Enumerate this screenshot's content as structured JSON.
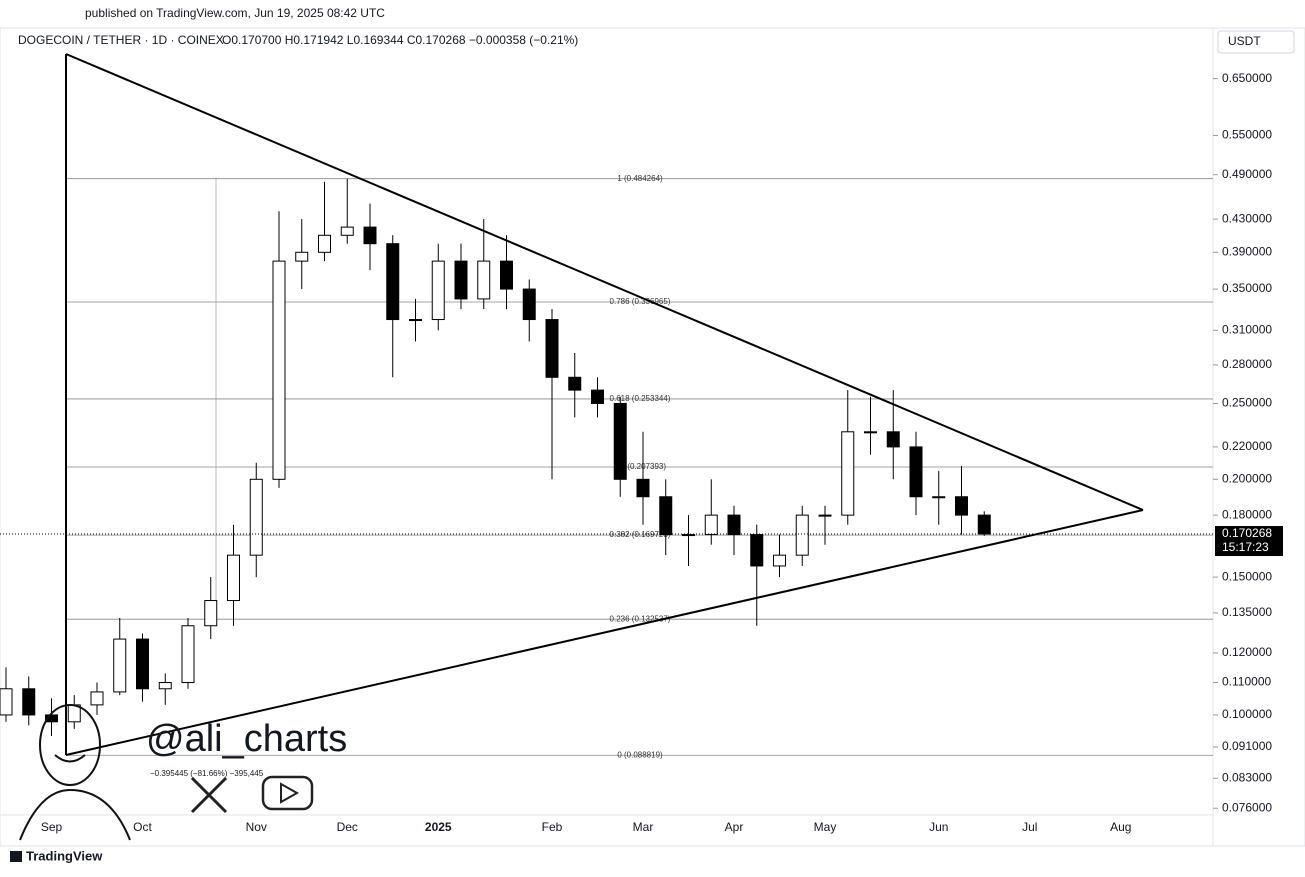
{
  "header": {
    "published": "published on TradingView.com, Jun 19, 2025 08:42 UTC",
    "symbol": "DOGECOIN / TETHER · 1D · COINEX",
    "ohlc": "O0.170700  H0.171942  L0.169344  C0.170268  −0.000358 (−0.21%)",
    "currency": "USDT"
  },
  "chart_data": {
    "type": "candlestick",
    "log_scale": true,
    "up_color": "#ffffff",
    "down_color": "#000000",
    "edge_color": "#000000",
    "categories": [
      null,
      null,
      "Sep",
      null,
      null,
      null,
      "Oct",
      null,
      null,
      null,
      null,
      "Nov",
      null,
      null,
      null,
      "Dec",
      null,
      null,
      null,
      "2025",
      null,
      null,
      null,
      null,
      "Feb",
      null,
      null,
      null,
      "Mar",
      null,
      null,
      null,
      "Apr",
      null,
      null,
      null,
      "May",
      null,
      null,
      null,
      null,
      "Jun",
      null,
      null,
      null,
      "Jul",
      null,
      null,
      null,
      "Aug",
      null
    ],
    "open": [
      0.1,
      0.108,
      0.1,
      0.098,
      0.103,
      0.107,
      0.125,
      0.108,
      0.11,
      0.13,
      0.14,
      0.16,
      0.2,
      0.38,
      0.39,
      0.41,
      0.42,
      0.4,
      0.32,
      0.32,
      0.38,
      0.34,
      0.38,
      0.35,
      0.32,
      0.27,
      0.26,
      0.25,
      0.2,
      0.19,
      0.17,
      0.17,
      0.18,
      0.17,
      0.155,
      0.16,
      0.18,
      0.18,
      0.23,
      0.23,
      0.22,
      0.19,
      0.19,
      0.18,
      null,
      null,
      null,
      null,
      null,
      null,
      null
    ],
    "high": [
      0.115,
      0.112,
      0.105,
      0.106,
      0.11,
      0.133,
      0.127,
      0.113,
      0.133,
      0.15,
      0.175,
      0.21,
      0.44,
      0.43,
      0.48,
      0.484,
      0.45,
      0.41,
      0.34,
      0.4,
      0.4,
      0.43,
      0.41,
      0.36,
      0.33,
      0.29,
      0.27,
      0.255,
      0.23,
      0.2,
      0.18,
      0.2,
      0.185,
      0.175,
      0.17,
      0.185,
      0.185,
      0.26,
      0.255,
      0.26,
      0.23,
      0.205,
      0.208,
      0.182,
      null,
      null,
      null,
      null,
      null,
      null,
      null
    ],
    "low": [
      0.098,
      0.097,
      0.094,
      0.096,
      0.1,
      0.106,
      0.104,
      0.103,
      0.108,
      0.125,
      0.13,
      0.15,
      0.195,
      0.35,
      0.38,
      0.4,
      0.37,
      0.27,
      0.3,
      0.31,
      0.33,
      0.33,
      0.33,
      0.3,
      0.2,
      0.24,
      0.24,
      0.19,
      0.175,
      0.16,
      0.155,
      0.165,
      0.16,
      0.13,
      0.15,
      0.155,
      0.165,
      0.175,
      0.215,
      0.2,
      0.18,
      0.175,
      0.17,
      0.169344,
      null,
      null,
      null,
      null,
      null,
      null,
      null
    ],
    "close": [
      0.108,
      0.1,
      0.098,
      0.103,
      0.107,
      0.125,
      0.108,
      0.11,
      0.13,
      0.14,
      0.16,
      0.2,
      0.38,
      0.39,
      0.41,
      0.42,
      0.4,
      0.32,
      0.32,
      0.38,
      0.34,
      0.38,
      0.35,
      0.32,
      0.27,
      0.26,
      0.25,
      0.2,
      0.19,
      0.17,
      0.17,
      0.18,
      0.17,
      0.155,
      0.16,
      0.18,
      0.18,
      0.23,
      0.23,
      0.22,
      0.19,
      0.19,
      0.18,
      0.170268,
      null,
      null,
      null,
      null,
      null,
      null,
      null
    ],
    "ylim": [
      0.0745,
      0.75
    ],
    "yticks": [
      {
        "value": 0.65,
        "label": "0.650000"
      },
      {
        "value": 0.55,
        "label": "0.550000"
      },
      {
        "value": 0.49,
        "label": "0.490000"
      },
      {
        "value": 0.43,
        "label": "0.430000"
      },
      {
        "value": 0.39,
        "label": "0.390000"
      },
      {
        "value": 0.35,
        "label": "0.350000"
      },
      {
        "value": 0.31,
        "label": "0.310000"
      },
      {
        "value": 0.28,
        "label": "0.280000"
      },
      {
        "value": 0.25,
        "label": "0.250000"
      },
      {
        "value": 0.22,
        "label": "0.220000"
      },
      {
        "value": 0.2,
        "label": "0.200000"
      },
      {
        "value": 0.18,
        "label": "0.180000"
      },
      {
        "value": 0.15,
        "label": "0.150000"
      },
      {
        "value": 0.135,
        "label": "0.135000"
      },
      {
        "value": 0.12,
        "label": "0.120000"
      },
      {
        "value": 0.11,
        "label": "0.110000"
      },
      {
        "value": 0.1,
        "label": "0.100000"
      },
      {
        "value": 0.091,
        "label": "0.091000"
      },
      {
        "value": 0.083,
        "label": "0.083000"
      },
      {
        "value": 0.076,
        "label": "0.076000"
      }
    ],
    "fib_levels": [
      {
        "value": 0.484264,
        "label": "1 (0.484264)"
      },
      {
        "value": 0.336965,
        "label": "0.786 (0.336965)"
      },
      {
        "value": 0.253344,
        "label": "0.618 (0.253344)"
      },
      {
        "value": 0.207393,
        "label": "0.5 (0.207393)"
      },
      {
        "value": 0.169723,
        "label": "0.382 (0.169723)"
      },
      {
        "value": 0.132537,
        "label": "0.236 (0.132537)"
      },
      {
        "value": 0.088819,
        "label": "0 (0.088819)"
      }
    ],
    "fib_range_label": "−0.395445 (−81.66%) −395,445",
    "last_price": {
      "value": 0.170268,
      "label": "0.170268",
      "countdown": "15:17:23"
    },
    "watermark": "@ali_charts",
    "brand": "TradingView"
  }
}
